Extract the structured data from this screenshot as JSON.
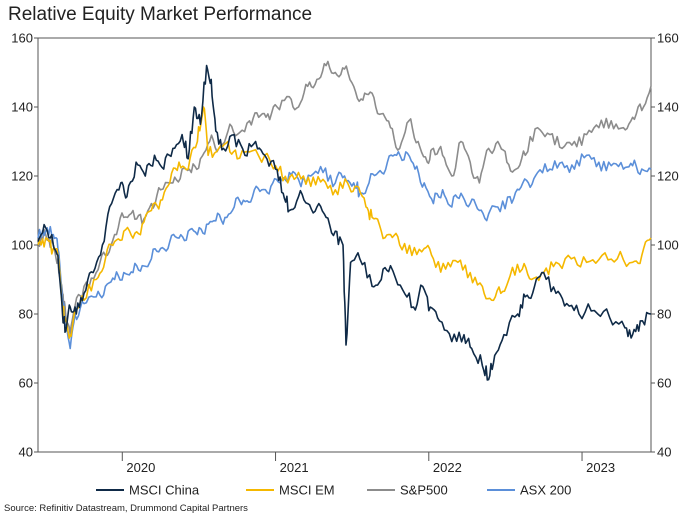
{
  "chart_data": {
    "type": "line",
    "title": "Relative Equity Market Performance",
    "source": "Source: Refinitiv Datastream, Drummond Capital Partners",
    "xlabel": "",
    "ylabel": "",
    "ylim": [
      40,
      160
    ],
    "yticks": [
      40,
      60,
      80,
      100,
      120,
      140,
      160
    ],
    "xlim": [
      2019.42,
      2023.42
    ],
    "xticks": [
      {
        "label": "2020",
        "value": 2020.0
      },
      {
        "label": "2021",
        "value": 2021.0
      },
      {
        "label": "2022",
        "value": 2022.0
      },
      {
        "label": "2023",
        "value": 2023.0
      }
    ],
    "year_dividers": [
      2019.97,
      2020.97,
      2021.97,
      2022.97
    ],
    "legend_position": "bottom",
    "series": [
      {
        "name": "MSCI China",
        "color": "#0f2a47",
        "points": [
          [
            2019.42,
            101
          ],
          [
            2019.47,
            105
          ],
          [
            2019.52,
            100
          ],
          [
            2019.55,
            97
          ],
          [
            2019.58,
            80
          ],
          [
            2019.6,
            75
          ],
          [
            2019.63,
            82
          ],
          [
            2019.67,
            80
          ],
          [
            2019.72,
            86
          ],
          [
            2019.78,
            92
          ],
          [
            2019.84,
            100
          ],
          [
            2019.9,
            112
          ],
          [
            2019.96,
            118
          ],
          [
            2020.0,
            114
          ],
          [
            2020.06,
            124
          ],
          [
            2020.12,
            120
          ],
          [
            2020.18,
            126
          ],
          [
            2020.24,
            122
          ],
          [
            2020.3,
            128
          ],
          [
            2020.36,
            132
          ],
          [
            2020.4,
            125
          ],
          [
            2020.44,
            140
          ],
          [
            2020.48,
            135
          ],
          [
            2020.52,
            152
          ],
          [
            2020.55,
            148
          ],
          [
            2020.58,
            133
          ],
          [
            2020.63,
            128
          ],
          [
            2020.7,
            132
          ],
          [
            2020.77,
            126
          ],
          [
            2020.84,
            130
          ],
          [
            2020.9,
            126
          ],
          [
            2020.97,
            122
          ],
          [
            2021.02,
            115
          ],
          [
            2021.06,
            110
          ],
          [
            2021.12,
            114
          ],
          [
            2021.18,
            112
          ],
          [
            2021.24,
            111
          ],
          [
            2021.3,
            108
          ],
          [
            2021.36,
            104
          ],
          [
            2021.41,
            100
          ],
          [
            2021.43,
            71
          ],
          [
            2021.46,
            95
          ],
          [
            2021.52,
            96
          ],
          [
            2021.6,
            88
          ],
          [
            2021.66,
            90
          ],
          [
            2021.72,
            94
          ],
          [
            2021.8,
            87
          ],
          [
            2021.87,
            82
          ],
          [
            2021.93,
            88
          ],
          [
            2021.98,
            82
          ],
          [
            2022.04,
            78
          ],
          [
            2022.12,
            72
          ],
          [
            2022.2,
            74
          ],
          [
            2022.25,
            70
          ],
          [
            2022.32,
            65
          ],
          [
            2022.36,
            61
          ],
          [
            2022.4,
            68
          ],
          [
            2022.46,
            74
          ],
          [
            2022.55,
            80
          ],
          [
            2022.6,
            85
          ],
          [
            2022.66,
            88
          ],
          [
            2022.72,
            92
          ],
          [
            2022.8,
            86
          ],
          [
            2022.87,
            83
          ],
          [
            2022.95,
            80
          ],
          [
            2023.05,
            81
          ],
          [
            2023.15,
            79
          ],
          [
            2023.25,
            76
          ],
          [
            2023.3,
            74
          ],
          [
            2023.35,
            78
          ],
          [
            2023.42,
            80
          ]
        ]
      },
      {
        "name": "MSCI EM",
        "color": "#f5b800",
        "points": [
          [
            2019.42,
            100
          ],
          [
            2019.47,
            102
          ],
          [
            2019.52,
            99
          ],
          [
            2019.55,
            97
          ],
          [
            2019.58,
            82
          ],
          [
            2019.6,
            78
          ],
          [
            2019.63,
            74
          ],
          [
            2019.66,
            81
          ],
          [
            2019.72,
            84
          ],
          [
            2019.8,
            90
          ],
          [
            2019.86,
            96
          ],
          [
            2019.92,
            101
          ],
          [
            2019.98,
            104
          ],
          [
            2020.04,
            102
          ],
          [
            2020.1,
            106
          ],
          [
            2020.16,
            110
          ],
          [
            2020.22,
            113
          ],
          [
            2020.28,
            118
          ],
          [
            2020.34,
            124
          ],
          [
            2020.4,
            122
          ],
          [
            2020.46,
            130
          ],
          [
            2020.5,
            140
          ],
          [
            2020.53,
            126
          ],
          [
            2020.6,
            128
          ],
          [
            2020.66,
            130
          ],
          [
            2020.72,
            125
          ],
          [
            2020.8,
            127
          ],
          [
            2020.9,
            126
          ],
          [
            2020.97,
            123
          ],
          [
            2021.05,
            118
          ],
          [
            2021.12,
            121
          ],
          [
            2021.2,
            117
          ],
          [
            2021.28,
            119
          ],
          [
            2021.36,
            116
          ],
          [
            2021.44,
            118
          ],
          [
            2021.5,
            117
          ],
          [
            2021.56,
            111
          ],
          [
            2021.6,
            108
          ],
          [
            2021.66,
            104
          ],
          [
            2021.72,
            103
          ],
          [
            2021.78,
            100
          ],
          [
            2021.86,
            97
          ],
          [
            2021.94,
            99
          ],
          [
            2022.0,
            96
          ],
          [
            2022.08,
            93
          ],
          [
            2022.16,
            95
          ],
          [
            2022.24,
            92
          ],
          [
            2022.32,
            88
          ],
          [
            2022.38,
            84
          ],
          [
            2022.44,
            86
          ],
          [
            2022.5,
            91
          ],
          [
            2022.58,
            93
          ],
          [
            2022.64,
            90
          ],
          [
            2022.72,
            92
          ],
          [
            2022.8,
            95
          ],
          [
            2022.9,
            96
          ],
          [
            2023.0,
            95
          ],
          [
            2023.1,
            97
          ],
          [
            2023.2,
            96
          ],
          [
            2023.3,
            95
          ],
          [
            2023.36,
            97
          ],
          [
            2023.42,
            102
          ]
        ]
      },
      {
        "name": "S&P500",
        "color": "#8c8c8c",
        "points": [
          [
            2019.42,
            101
          ],
          [
            2019.47,
            103
          ],
          [
            2019.52,
            100
          ],
          [
            2019.55,
            96
          ],
          [
            2019.58,
            86
          ],
          [
            2019.6,
            80
          ],
          [
            2019.63,
            74
          ],
          [
            2019.66,
            82
          ],
          [
            2019.72,
            88
          ],
          [
            2019.8,
            92
          ],
          [
            2019.86,
            97
          ],
          [
            2019.92,
            103
          ],
          [
            2019.98,
            108
          ],
          [
            2020.04,
            110
          ],
          [
            2020.1,
            106
          ],
          [
            2020.16,
            112
          ],
          [
            2020.22,
            116
          ],
          [
            2020.3,
            118
          ],
          [
            2020.36,
            122
          ],
          [
            2020.42,
            121
          ],
          [
            2020.48,
            125
          ],
          [
            2020.54,
            130
          ],
          [
            2020.6,
            128
          ],
          [
            2020.66,
            133
          ],
          [
            2020.72,
            132
          ],
          [
            2020.8,
            136
          ],
          [
            2020.86,
            137
          ],
          [
            2020.92,
            138
          ],
          [
            2020.98,
            140
          ],
          [
            2021.06,
            143
          ],
          [
            2021.12,
            140
          ],
          [
            2021.18,
            146
          ],
          [
            2021.24,
            148
          ],
          [
            2021.3,
            152
          ],
          [
            2021.36,
            150
          ],
          [
            2021.42,
            151
          ],
          [
            2021.48,
            146
          ],
          [
            2021.54,
            142
          ],
          [
            2021.6,
            144
          ],
          [
            2021.66,
            138
          ],
          [
            2021.72,
            134
          ],
          [
            2021.78,
            128
          ],
          [
            2021.84,
            136
          ],
          [
            2021.9,
            130
          ],
          [
            2021.96,
            124
          ],
          [
            2022.0,
            128
          ],
          [
            2022.06,
            126
          ],
          [
            2022.12,
            120
          ],
          [
            2022.18,
            130
          ],
          [
            2022.24,
            124
          ],
          [
            2022.3,
            118
          ],
          [
            2022.36,
            128
          ],
          [
            2022.42,
            130
          ],
          [
            2022.48,
            124
          ],
          [
            2022.54,
            122
          ],
          [
            2022.6,
            126
          ],
          [
            2022.68,
            134
          ],
          [
            2022.76,
            132
          ],
          [
            2022.84,
            128
          ],
          [
            2022.92,
            130
          ],
          [
            2023.0,
            132
          ],
          [
            2023.08,
            134
          ],
          [
            2023.16,
            136
          ],
          [
            2023.24,
            134
          ],
          [
            2023.3,
            137
          ],
          [
            2023.36,
            139
          ],
          [
            2023.42,
            146
          ]
        ]
      },
      {
        "name": "ASX 200",
        "color": "#5b8fd9",
        "points": [
          [
            2019.42,
            102
          ],
          [
            2019.47,
            104
          ],
          [
            2019.52,
            103
          ],
          [
            2019.55,
            99
          ],
          [
            2019.58,
            84
          ],
          [
            2019.6,
            77
          ],
          [
            2019.63,
            70
          ],
          [
            2019.66,
            80
          ],
          [
            2019.72,
            83
          ],
          [
            2019.8,
            85
          ],
          [
            2019.86,
            88
          ],
          [
            2019.92,
            90
          ],
          [
            2019.98,
            92
          ],
          [
            2020.04,
            92
          ],
          [
            2020.1,
            94
          ],
          [
            2020.16,
            96
          ],
          [
            2020.22,
            99
          ],
          [
            2020.28,
            101
          ],
          [
            2020.34,
            102
          ],
          [
            2020.4,
            104
          ],
          [
            2020.46,
            103
          ],
          [
            2020.52,
            106
          ],
          [
            2020.58,
            107
          ],
          [
            2020.64,
            108
          ],
          [
            2020.7,
            111
          ],
          [
            2020.76,
            113
          ],
          [
            2020.82,
            114
          ],
          [
            2020.88,
            116
          ],
          [
            2020.94,
            117
          ],
          [
            2021.0,
            118
          ],
          [
            2021.06,
            121
          ],
          [
            2021.12,
            119
          ],
          [
            2021.2,
            120
          ],
          [
            2021.28,
            121
          ],
          [
            2021.36,
            118
          ],
          [
            2021.42,
            120
          ],
          [
            2021.48,
            118
          ],
          [
            2021.52,
            115
          ],
          [
            2021.58,
            118
          ],
          [
            2021.64,
            121
          ],
          [
            2021.7,
            124
          ],
          [
            2021.76,
            126
          ],
          [
            2021.82,
            127
          ],
          [
            2021.88,
            122
          ],
          [
            2021.94,
            118
          ],
          [
            2022.0,
            112
          ],
          [
            2022.06,
            116
          ],
          [
            2022.12,
            111
          ],
          [
            2022.18,
            115
          ],
          [
            2022.24,
            112
          ],
          [
            2022.3,
            110
          ],
          [
            2022.36,
            109
          ],
          [
            2022.42,
            111
          ],
          [
            2022.5,
            114
          ],
          [
            2022.56,
            116
          ],
          [
            2022.62,
            118
          ],
          [
            2022.68,
            121
          ],
          [
            2022.76,
            122
          ],
          [
            2022.84,
            124
          ],
          [
            2022.92,
            122
          ],
          [
            2023.0,
            126
          ],
          [
            2023.08,
            124
          ],
          [
            2023.16,
            123
          ],
          [
            2023.24,
            122
          ],
          [
            2023.3,
            123
          ],
          [
            2023.36,
            122
          ],
          [
            2023.42,
            122
          ]
        ]
      }
    ]
  }
}
